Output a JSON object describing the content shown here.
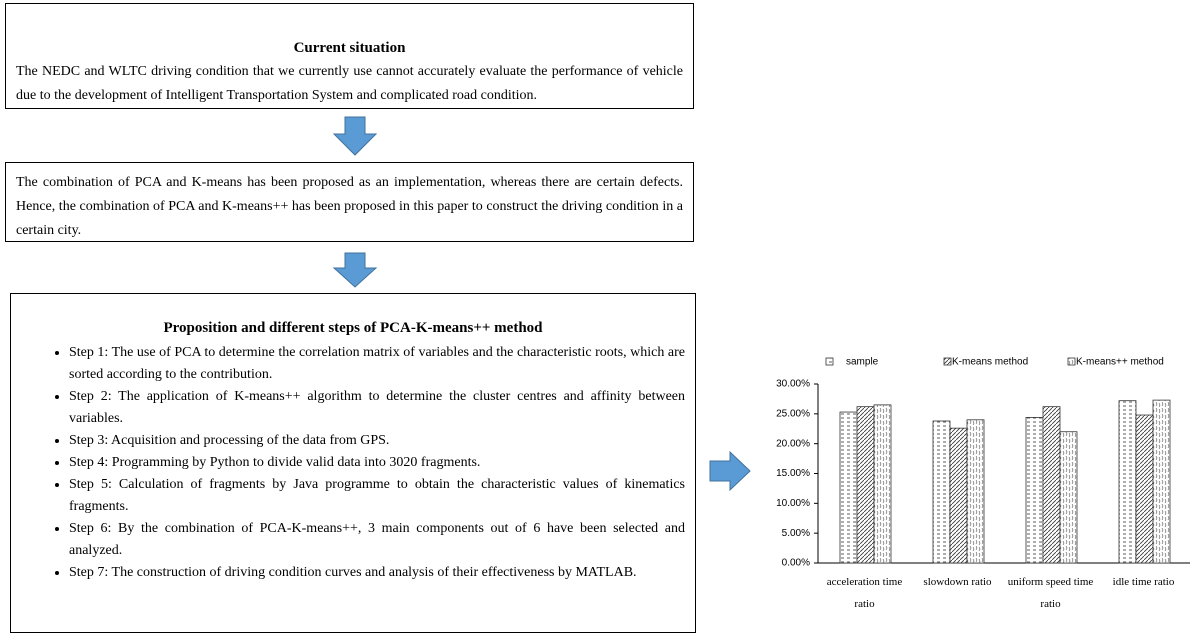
{
  "box1": {
    "title": "Current situation",
    "text": "The NEDC and WLTC driving condition that we currently use cannot accurately evaluate the performance of vehicle due to the development of Intelligent Transportation System and complicated road condition."
  },
  "box2": {
    "text": "The combination of PCA and K-means has been proposed as an implementation, whereas there are certain defects. Hence, the combination of PCA and K-means++ has been proposed in this paper to construct the driving condition in a certain city."
  },
  "box3": {
    "title": "Proposition and different steps of PCA-K-means++ method",
    "steps": [
      "Step 1: The use of PCA to determine the correlation matrix of variables and the characteristic roots, which are sorted according to the contribution.",
      "Step 2: The application of K-means++ algorithm to determine the cluster centres and affinity between variables.",
      "Step 3: Acquisition and processing of the data from GPS.",
      "Step 4: Programming by Python to divide valid data into 3020 fragments.",
      "Step 5: Calculation of fragments by Java programme to obtain the characteristic values of kinematics fragments.",
      "Step 6: By the combination of PCA-K-means++, 3 main components out of 6 have been selected and analyzed.",
      "Step 7: The construction of driving condition curves and analysis of their effectiveness by MATLAB."
    ]
  },
  "chart_data": {
    "type": "bar",
    "categories": [
      "acceleration time ratio",
      "slowdown ratio",
      "uniform speed time ratio",
      "idle time ratio"
    ],
    "series": [
      {
        "name": "sample",
        "color": "#ffffff",
        "values": [
          25.3,
          23.8,
          24.4,
          27.2
        ]
      },
      {
        "name": "K-means method",
        "color": "#ffffff",
        "values": [
          26.2,
          22.6,
          26.2,
          24.8
        ]
      },
      {
        "name": "K-means++ method",
        "color": "#ffffff",
        "values": [
          26.5,
          24.0,
          22.0,
          27.3
        ]
      }
    ],
    "ylim": [
      0,
      30
    ],
    "yticks": [
      {
        "value": 0,
        "label": "0.00%"
      },
      {
        "value": 5,
        "label": "5.00%"
      },
      {
        "value": 10,
        "label": "10.00%"
      },
      {
        "value": 15,
        "label": "15.00%"
      },
      {
        "value": 20,
        "label": "20.00%"
      },
      {
        "value": 25,
        "label": "25.00%"
      },
      {
        "value": 30,
        "label": "30.00%"
      }
    ],
    "grid": false
  }
}
